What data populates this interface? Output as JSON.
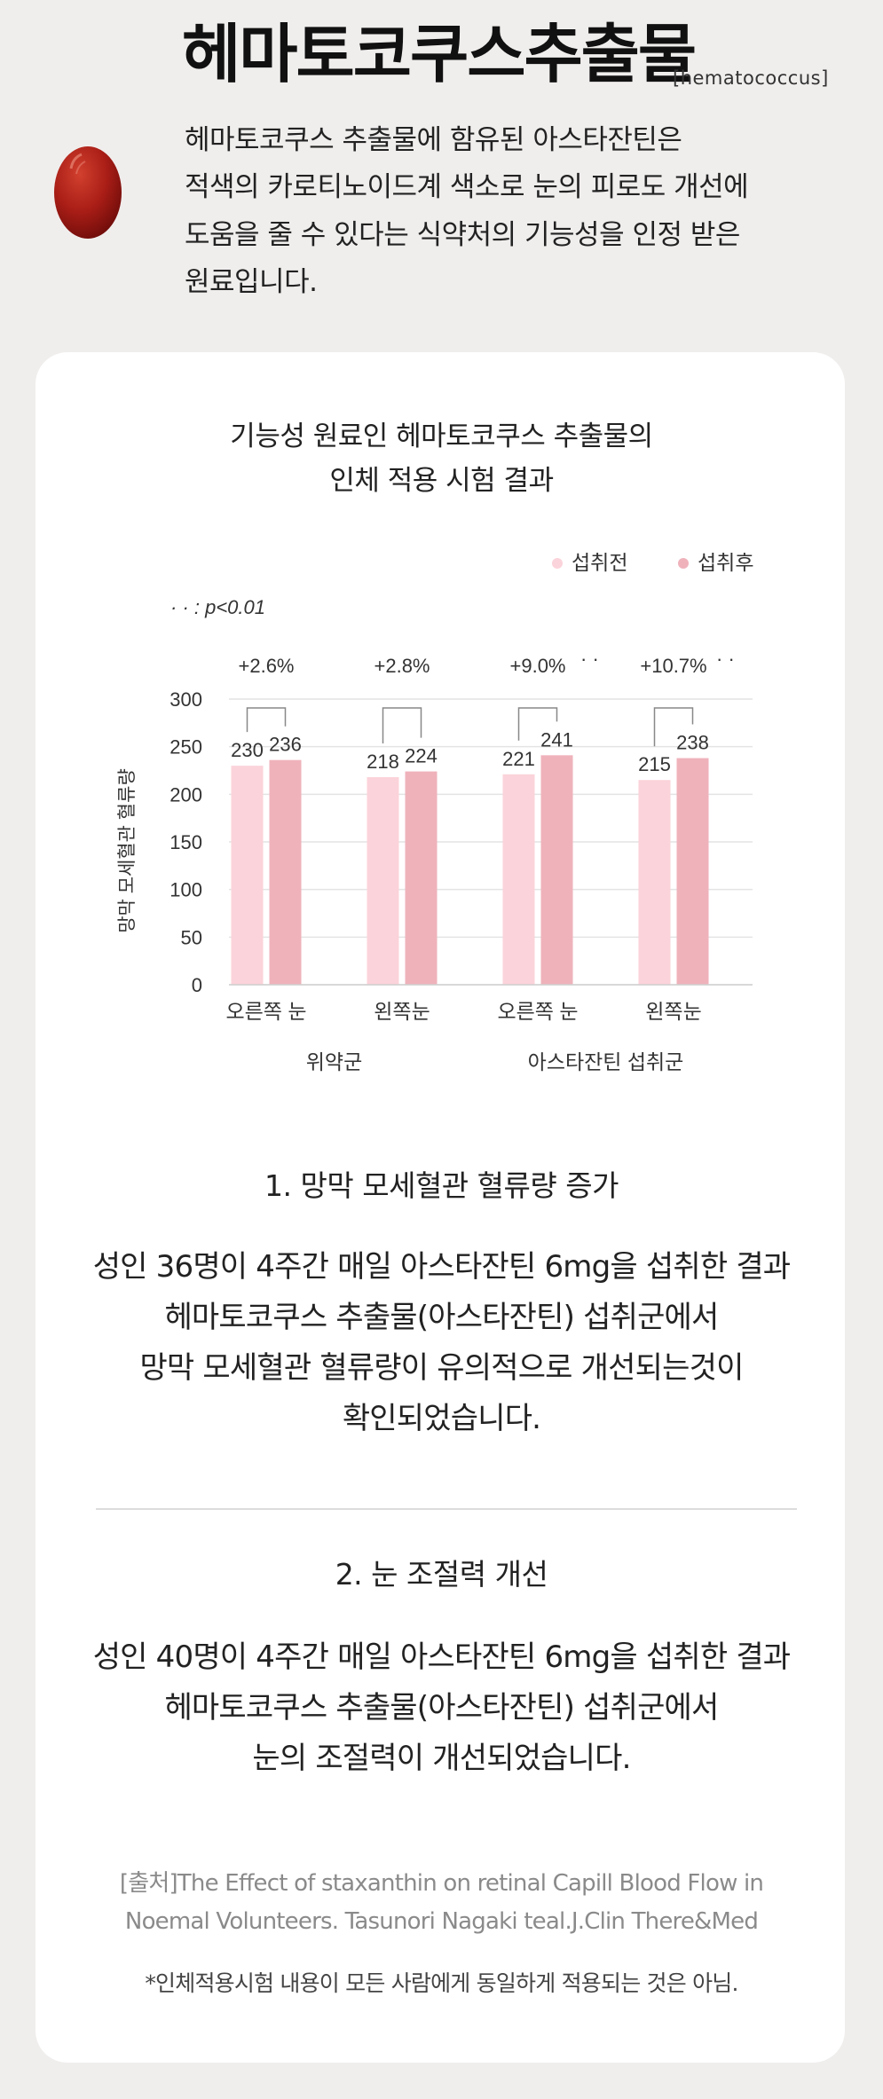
{
  "header": {
    "title": "헤마토코쿠스추출물",
    "subtitle": "[hematococcus]",
    "intro_lines": [
      "헤마토코쿠스 추출물에 함유된 아스타잔틴은",
      "적색의 카로티노이드계 색소로 눈의 피로도 개선에",
      "도움을 줄 수 있다는 식약처의 기능성을 인정 받은",
      "원료입니다."
    ]
  },
  "chart_section": {
    "title_lines": [
      "기능성 원료인 헤마토코쿠스 추출물의",
      "인체 적용 시험 결과"
    ],
    "significance_note": "· · : p<0.01"
  },
  "chart_data": {
    "type": "bar",
    "ylabel": "망막 모세혈관 혈류량",
    "ylim": [
      0,
      300
    ],
    "yticks": [
      0,
      50,
      100,
      150,
      200,
      250,
      300
    ],
    "categories": [
      "오른쪽 눈",
      "왼쪽눈",
      "오른쪽 눈",
      "왼쪽눈"
    ],
    "groups": [
      {
        "label": "위약군",
        "categories": [
          0,
          1
        ]
      },
      {
        "label": "아스타잔틴 섭취군",
        "categories": [
          2,
          3
        ]
      }
    ],
    "series": [
      {
        "name": "섭취전",
        "color": "#fbd3da",
        "values": [
          230,
          218,
          221,
          215
        ]
      },
      {
        "name": "섭취후",
        "color": "#efb2bb",
        "values": [
          236,
          224,
          241,
          238
        ]
      }
    ],
    "changes": [
      "+2.6%",
      "+2.8%",
      "+9.0%",
      "+10.7%"
    ],
    "significant": [
      false,
      false,
      true,
      true
    ],
    "significance_mark": "· ·",
    "grid": true,
    "legend_position": "top-right"
  },
  "sections": [
    {
      "title": "1. 망막 모세혈관 혈류량 증가",
      "body_lines": [
        "성인 36명이 4주간 매일 아스타잔틴 6mg을 섭취한 결과",
        "헤마토코쿠스 추출물(아스타잔틴) 섭취군에서",
        "망막 모세혈관 혈류량이 유의적으로 개선되는것이",
        "확인되었습니다."
      ]
    },
    {
      "title": "2. 눈 조절력 개선",
      "body_lines": [
        "성인 40명이 4주간 매일 아스타잔틴 6mg을 섭취한 결과",
        "헤마토코쿠스 추출물(아스타잔틴) 섭취군에서",
        "눈의 조절력이 개선되었습니다."
      ]
    }
  ],
  "source_lines": [
    "[출처]The Effect of staxanthin on retinal Capill Blood Flow in",
    "Noemal Volunteers. Tasunori Nagaki teal.J.Clin There&Med"
  ],
  "disclaimer": "*인체적용시험 내용이 모든 사람에게 동일하게 적용되는 것은 아님."
}
